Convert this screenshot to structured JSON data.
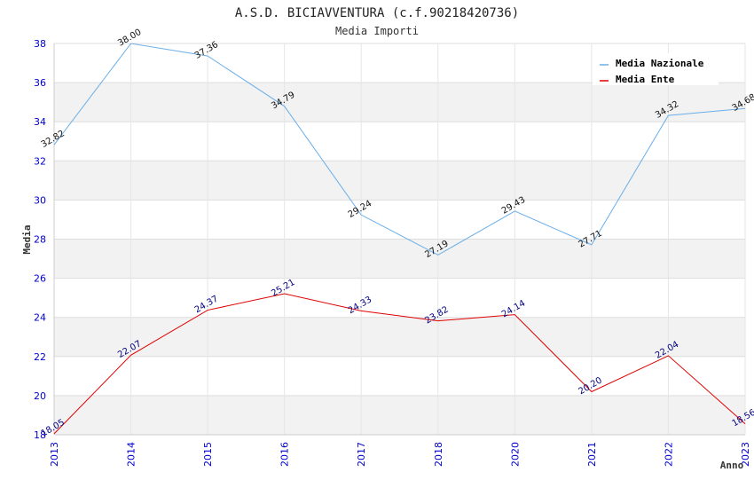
{
  "chart_data": {
    "type": "line",
    "title": "A.S.D. BICIAVVENTURA (c.f.90218420736)",
    "subtitle": "Media Importi",
    "xlabel": "Anno",
    "ylabel": "Media",
    "ylim": [
      18,
      38
    ],
    "yticks": [
      "18",
      "20",
      "22",
      "24",
      "26",
      "28",
      "30",
      "32",
      "34",
      "36",
      "38"
    ],
    "categories": [
      "2013",
      "2014",
      "2015",
      "2016",
      "2017",
      "2018",
      "2020",
      "2021",
      "2022",
      "2023"
    ],
    "series": [
      {
        "name": "Media Nazionale",
        "color": "#6aaee8",
        "values": [
          32.82,
          38.0,
          37.36,
          34.79,
          29.24,
          27.19,
          29.43,
          27.71,
          34.32,
          34.68
        ],
        "labels": [
          "32.82",
          "38.00",
          "37.36",
          "34.79",
          "29.24",
          "27.19",
          "29.43",
          "27.71",
          "34.32",
          "34.68"
        ]
      },
      {
        "name": "Media Ente",
        "color": "#e00000",
        "values": [
          18.05,
          22.07,
          24.37,
          25.21,
          24.33,
          23.82,
          24.14,
          20.2,
          22.04,
          18.56
        ],
        "labels": [
          "18.05",
          "22.07",
          "24.37",
          "25.21",
          "24.33",
          "23.82",
          "24.14",
          "20.20",
          "22.04",
          "18.56"
        ]
      }
    ],
    "grid": true,
    "legend_position": "top-right"
  }
}
